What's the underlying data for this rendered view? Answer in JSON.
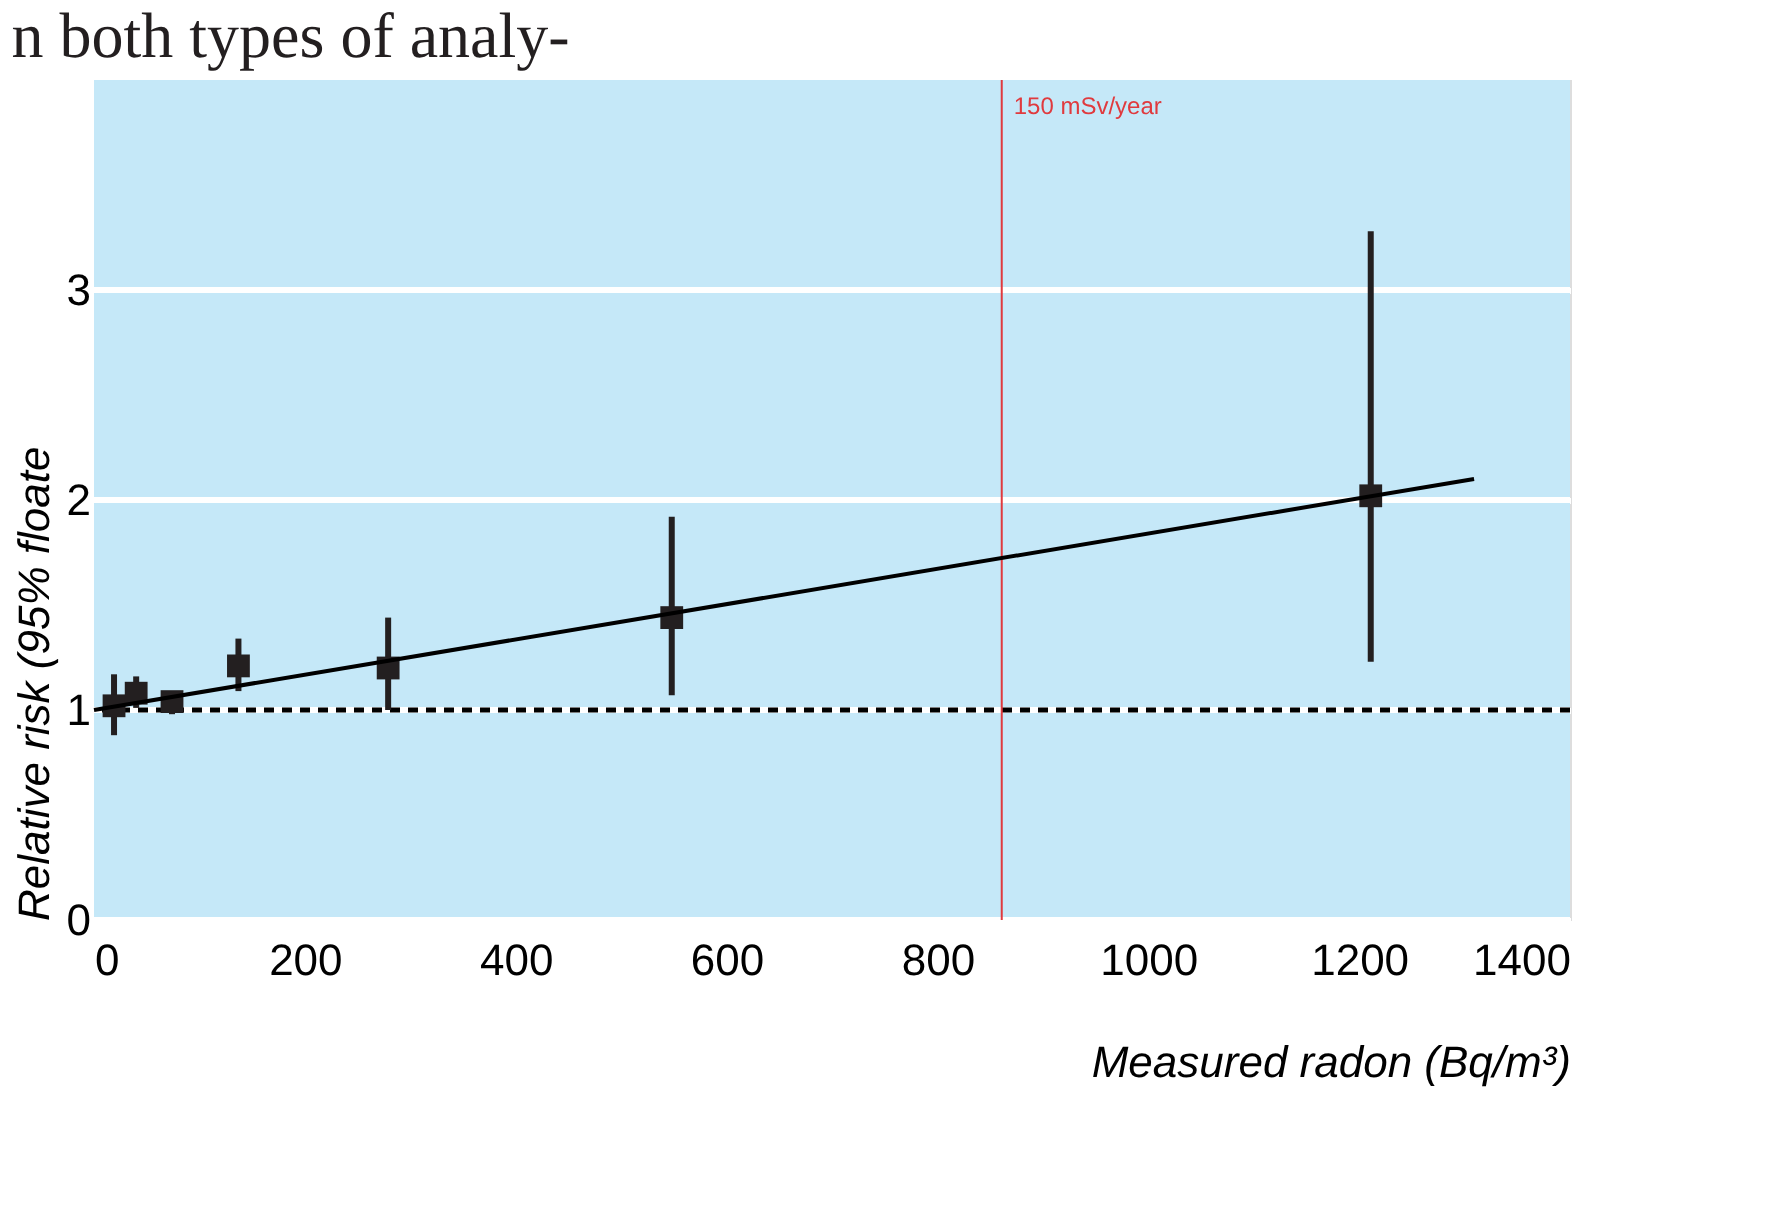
{
  "chart_data": {
    "type": "scatter",
    "annotations": [
      "n both types of analy-"
    ],
    "xlabel": "Measured radon (Bq/m³)",
    "ylabel": "Relative risk (95% floate",
    "xlim": [
      0,
      1400
    ],
    "xticks": [
      0,
      200,
      400,
      600,
      800,
      1000,
      1200,
      1400
    ],
    "ylim": [
      0,
      4
    ],
    "yticks": [
      0,
      1,
      2,
      3
    ],
    "grid": "y",
    "series": [
      {
        "type": "scatter",
        "marker": "square",
        "color": "#231f20",
        "x": [
          19,
          40,
          74,
          137,
          279,
          548,
          1211
        ],
        "values": [
          1.02,
          1.08,
          1.04,
          1.21,
          1.2,
          1.44,
          2.02
        ],
        "errors": [
          [
            0.88,
            1.17
          ],
          [
            1.01,
            1.16
          ],
          [
            0.98,
            1.09
          ],
          [
            1.09,
            1.34
          ],
          [
            1.0,
            1.44
          ],
          [
            1.07,
            1.92
          ],
          [
            1.23,
            3.28
          ]
        ]
      },
      {
        "type": "line",
        "marker": "none",
        "color": "#000000",
        "line_style": "solid",
        "x": [
          0,
          1309
        ],
        "values": [
          1.0,
          2.1
        ]
      }
    ],
    "ref_lines": [
      {
        "axis": "y",
        "value": 1,
        "color": "#000000",
        "line_style": "dashed"
      },
      {
        "axis": "x",
        "value": 861,
        "label": "150 mSv/year",
        "color": "#e03a3e",
        "line_style": "solid"
      }
    ]
  }
}
